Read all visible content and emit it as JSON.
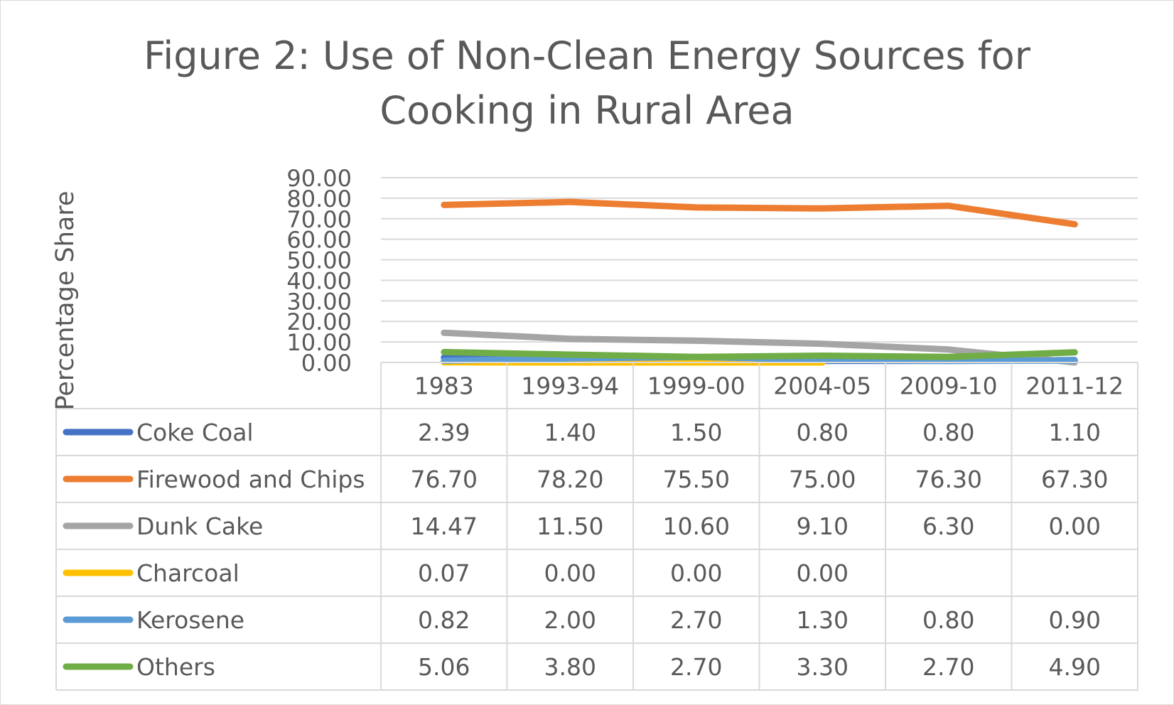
{
  "chart_data": {
    "type": "line",
    "title_line1": "Figure 2: Use of Non-Clean Energy Sources for",
    "title_line2": "Cooking in Rural Area",
    "ylabel": "Percentage Share",
    "xlabel": "",
    "ylim": [
      0,
      90
    ],
    "yticks": [
      "0.00",
      "10.00",
      "20.00",
      "30.00",
      "40.00",
      "50.00",
      "60.00",
      "70.00",
      "80.00",
      "90.00"
    ],
    "grid": true,
    "legend": "data-table",
    "categories": [
      "1983",
      "1993-94",
      "1999-00",
      "2004-05",
      "2009-10",
      "2011-12"
    ],
    "series": [
      {
        "name": "Coke Coal",
        "color": "#4472c4",
        "values": [
          2.39,
          1.4,
          1.5,
          0.8,
          0.8,
          1.1
        ],
        "labels": [
          "2.39",
          "1.40",
          "1.50",
          "0.80",
          "0.80",
          "1.10"
        ]
      },
      {
        "name": "Firewood and Chips",
        "color": "#ed7d31",
        "values": [
          76.7,
          78.2,
          75.5,
          75.0,
          76.3,
          67.3
        ],
        "labels": [
          "76.70",
          "78.20",
          "75.50",
          "75.00",
          "76.30",
          "67.30"
        ]
      },
      {
        "name": "Dunk Cake",
        "color": "#a5a5a5",
        "values": [
          14.47,
          11.5,
          10.6,
          9.1,
          6.3,
          0.0
        ],
        "labels": [
          "14.47",
          "11.50",
          "10.60",
          "9.10",
          "6.30",
          "0.00"
        ]
      },
      {
        "name": "Charcoal",
        "color": "#ffc000",
        "values": [
          0.07,
          0.0,
          0.0,
          0.0,
          null,
          null
        ],
        "labels": [
          "0.07",
          "0.00",
          "0.00",
          "0.00",
          "",
          ""
        ]
      },
      {
        "name": "Kerosene",
        "color": "#5b9bd5",
        "values": [
          0.82,
          2.0,
          2.7,
          1.3,
          0.8,
          0.9
        ],
        "labels": [
          "0.82",
          "2.00",
          "2.70",
          "1.30",
          "0.80",
          "0.90"
        ]
      },
      {
        "name": "Others",
        "color": "#70ad47",
        "values": [
          5.06,
          3.8,
          2.7,
          3.3,
          2.7,
          4.9
        ],
        "labels": [
          "5.06",
          "3.80",
          "2.70",
          "3.30",
          "2.70",
          "4.90"
        ]
      }
    ]
  }
}
